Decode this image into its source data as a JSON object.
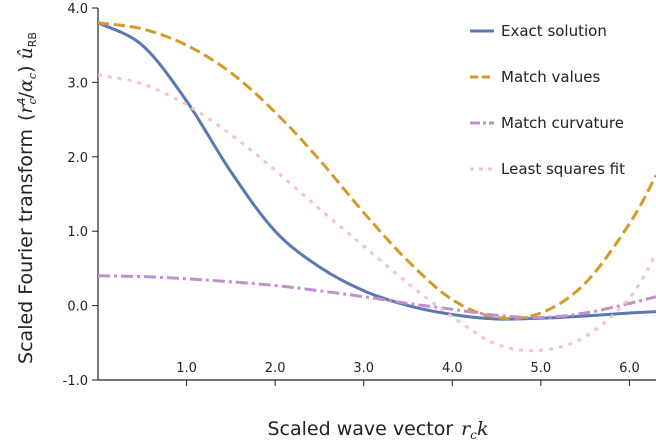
{
  "chart_data": {
    "type": "line",
    "xlabel": "Scaled wave vector",
    "xlabel_math": "r_c k",
    "ylabel": "Scaled Fourier transform",
    "ylabel_math": "(r_c^4/α_c) û_RB",
    "xlim": [
      0,
      6.3
    ],
    "ylim": [
      -1.0,
      4.0
    ],
    "x_ticks": [
      1.0,
      2.0,
      3.0,
      4.0,
      5.0,
      6.0
    ],
    "x_tick_labels": [
      "1.0",
      "2.0",
      "3.0",
      "4.0",
      "5.0",
      "6.0"
    ],
    "y_ticks": [
      -1.0,
      0.0,
      1.0,
      2.0,
      3.0,
      4.0
    ],
    "y_tick_labels": [
      "-1.0",
      "0.0",
      "1.0",
      "2.0",
      "3.0",
      "4.0"
    ],
    "grid": false,
    "legend_position": "top-right",
    "series": [
      {
        "name": "Exact solution",
        "color": "#5a78b3",
        "style": "solid",
        "x": [
          0,
          0.5,
          1.0,
          1.5,
          2.0,
          2.5,
          3.0,
          3.5,
          4.0,
          4.5,
          5.0,
          5.5,
          6.0,
          6.3
        ],
        "y": [
          3.8,
          3.5,
          2.75,
          1.8,
          1.0,
          0.52,
          0.2,
          0.0,
          -0.12,
          -0.18,
          -0.17,
          -0.14,
          -0.1,
          -0.08
        ]
      },
      {
        "name": "Match values",
        "color": "#d49b2a",
        "style": "dashed",
        "x": [
          0,
          0.5,
          1.0,
          1.5,
          2.0,
          2.5,
          3.0,
          3.5,
          4.0,
          4.5,
          5.0,
          5.5,
          6.0,
          6.3
        ],
        "y": [
          3.8,
          3.72,
          3.5,
          3.13,
          2.6,
          1.96,
          1.25,
          0.6,
          0.08,
          -0.16,
          -0.1,
          0.3,
          1.1,
          1.75
        ]
      },
      {
        "name": "Match curvature",
        "color": "#c28fcf",
        "style": "dashdot",
        "x": [
          0,
          0.5,
          1.0,
          1.5,
          2.0,
          2.5,
          3.0,
          3.5,
          4.0,
          4.5,
          5.0,
          5.5,
          6.0,
          6.3
        ],
        "y": [
          0.4,
          0.39,
          0.36,
          0.32,
          0.27,
          0.2,
          0.12,
          0.03,
          -0.05,
          -0.13,
          -0.16,
          -0.1,
          0.03,
          0.12
        ]
      },
      {
        "name": "Least squares fit",
        "color": "#f7c4c4",
        "style": "dotted",
        "x": [
          0,
          0.5,
          1.0,
          1.5,
          2.0,
          2.5,
          3.0,
          3.5,
          4.0,
          4.5,
          5.0,
          5.5,
          6.0,
          6.3
        ],
        "y": [
          3.1,
          2.98,
          2.7,
          2.3,
          1.82,
          1.3,
          0.8,
          0.3,
          -0.15,
          -0.52,
          -0.6,
          -0.42,
          0.1,
          0.7
        ]
      }
    ]
  }
}
